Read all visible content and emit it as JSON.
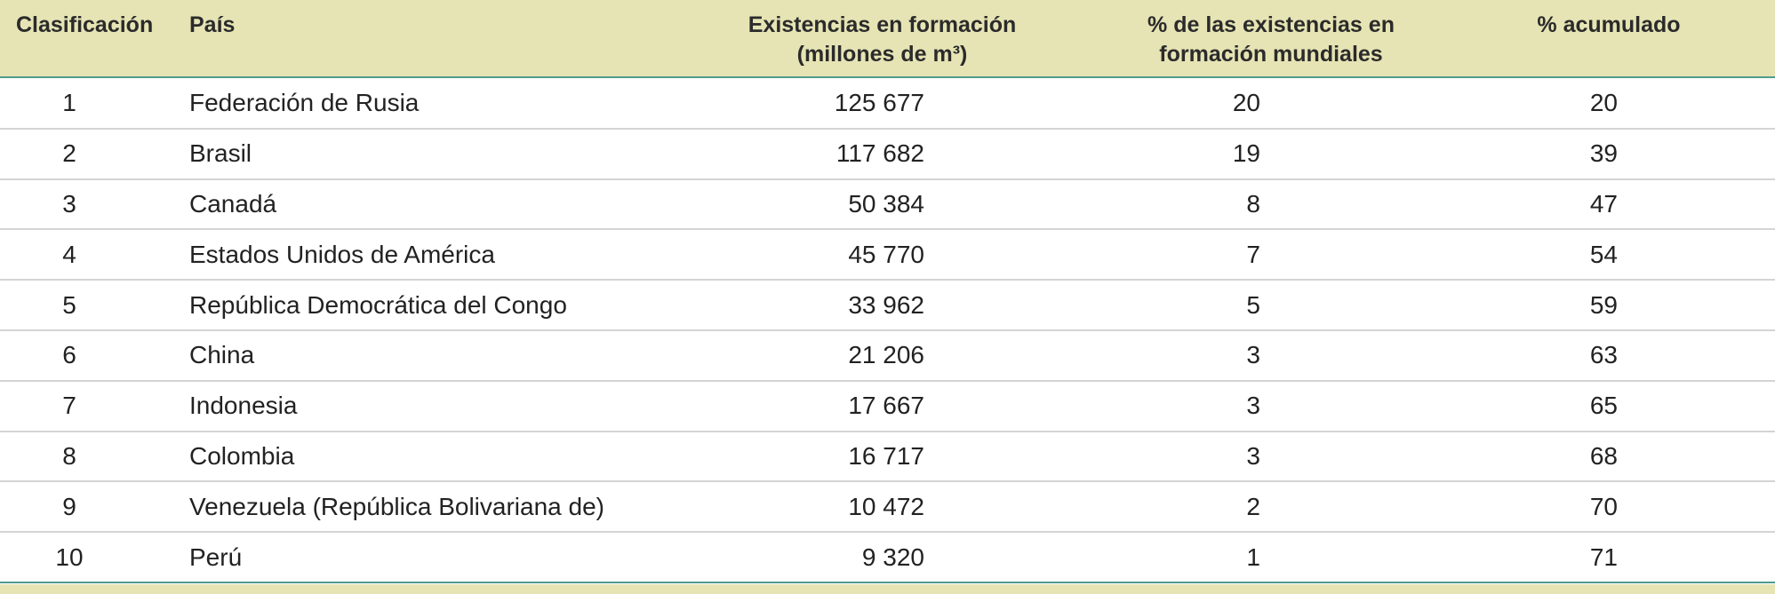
{
  "header": {
    "rank": "Clasificación",
    "country": "País",
    "stock_line1": "Existencias en formación",
    "stock_line2": "(millones de m³)",
    "pct_line1": "% de las existencias en",
    "pct_line2": "formación mundiales",
    "cum": "% acumulado"
  },
  "rows": [
    {
      "rank": "1",
      "country": "Federación de Rusia",
      "stock": "125 677",
      "pct": "20",
      "cum": "20"
    },
    {
      "rank": "2",
      "country": "Brasil",
      "stock": "117 682",
      "pct": "19",
      "cum": "39"
    },
    {
      "rank": "3",
      "country": "Canadá",
      "stock": "50 384",
      "pct": "8",
      "cum": "47"
    },
    {
      "rank": "4",
      "country": "Estados Unidos de América",
      "stock": "45 770",
      "pct": "7",
      "cum": "54"
    },
    {
      "rank": "5",
      "country": "República Democrática del Congo",
      "stock": "33 962",
      "pct": "5",
      "cum": "59"
    },
    {
      "rank": "6",
      "country": "China",
      "stock": "21 206",
      "pct": "3",
      "cum": "63"
    },
    {
      "rank": "7",
      "country": "Indonesia",
      "stock": "17 667",
      "pct": "3",
      "cum": "65"
    },
    {
      "rank": "8",
      "country": "Colombia",
      "stock": "16 717",
      "pct": "3",
      "cum": "68"
    },
    {
      "rank": "9",
      "country": "Venezuela (República Bolivariana de)",
      "stock": "10 472",
      "pct": "2",
      "cum": "70"
    },
    {
      "rank": "10",
      "country": "Perú",
      "stock": "9 320",
      "pct": "1",
      "cum": "71"
    }
  ],
  "colors": {
    "header_bg": "#e6e4b4",
    "accent_rule": "#4f9a8e",
    "row_divider": "#d4d4d4"
  }
}
